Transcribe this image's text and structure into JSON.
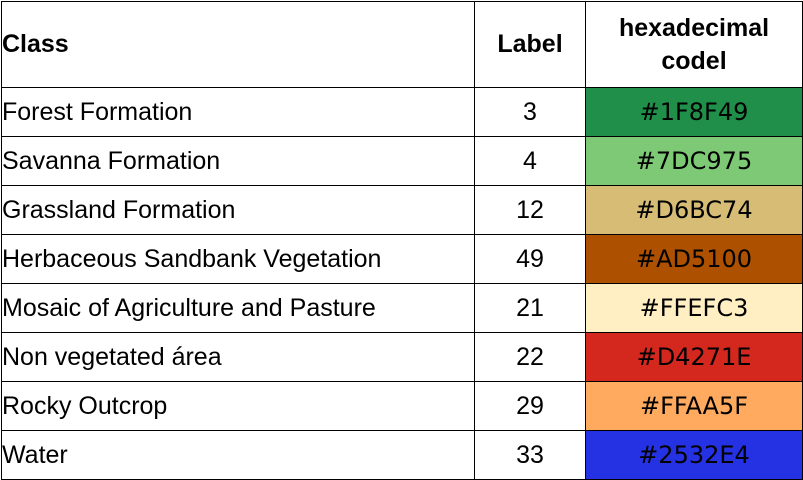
{
  "table": {
    "headers": {
      "class": "Class",
      "label": "Label",
      "hex_line1": "hexadecimal",
      "hex_line2": "codel"
    },
    "rows": [
      {
        "class": "Forest Formation",
        "label": "3",
        "hex": "#1F8F49",
        "color": "#1F8F49"
      },
      {
        "class": "Savanna Formation",
        "label": "4",
        "hex": "#7DC975",
        "color": "#7DC975"
      },
      {
        "class": "Grassland Formation",
        "label": "12",
        "hex": "#D6BC74",
        "color": "#D6BC74"
      },
      {
        "class": "Herbaceous Sandbank Vegetation",
        "label": "49",
        "hex": "#AD5100",
        "color": "#AD5100"
      },
      {
        "class": "Mosaic of Agriculture and Pasture",
        "label": "21",
        "hex": "#FFEFC3",
        "color": "#FFEFC3"
      },
      {
        "class": "Non vegetated área",
        "label": "22",
        "hex": "#D4271E",
        "color": "#D4271E"
      },
      {
        "class": "Rocky Outcrop",
        "label": "29",
        "hex": "#FFAA5F",
        "color": "#FFAA5F"
      },
      {
        "class": "Water",
        "label": "33",
        "hex": "#2532E4",
        "color": "#2532E4"
      }
    ]
  }
}
